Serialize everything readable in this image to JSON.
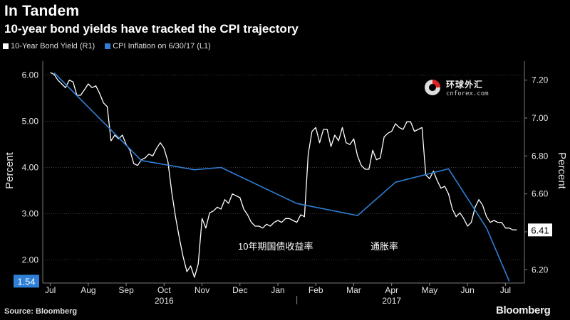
{
  "header": {
    "title": "In Tandem",
    "subtitle": "10-year bond yields have tracked the CPI trajectory"
  },
  "legend": {
    "items": [
      {
        "label": "10-Year Bond Yield (R1)",
        "color": "#ffffff"
      },
      {
        "label": "CPI Inflation on 6/30/17 (L1)",
        "color": "#2f7fd6"
      }
    ]
  },
  "footer": {
    "source": "Source: Bloomberg",
    "brand": "Bloomberg"
  },
  "watermark": {
    "name": "环球外汇",
    "site": "cnforex.com"
  },
  "annotations": {
    "bond_label": "10年期国债收益率",
    "cpi_label": "通胀率"
  },
  "chart_data": {
    "type": "line",
    "title": "In Tandem",
    "subtitle": "10-year bond yields have tracked the CPI trajectory",
    "x_ticks": [
      "Jul",
      "Aug",
      "Sep",
      "Oct",
      "Nov",
      "Dec",
      "Jan",
      "Feb",
      "Mar",
      "Apr",
      "May",
      "Jun",
      "Jul"
    ],
    "x_years": [
      "2016",
      "2017"
    ],
    "left_axis": {
      "label": "Percent",
      "range": [
        1.5,
        6.3
      ],
      "ticks": [
        "6.00",
        "5.00",
        "4.00",
        "3.00",
        "2.00"
      ]
    },
    "right_axis": {
      "label": "Percent",
      "range": [
        6.13,
        7.3
      ],
      "ticks": [
        "7.20",
        "7.00",
        "6.80",
        "6.60",
        "6.40",
        "6.20"
      ]
    },
    "grid": true,
    "series": [
      {
        "name": "10-Year Bond Yield (R1)",
        "axis": "right",
        "color": "#ffffff",
        "last_value_label": "6.41",
        "x": [
          0.0,
          0.1,
          0.2,
          0.3,
          0.4,
          0.5,
          0.6,
          0.7,
          0.8,
          0.9,
          1.0,
          1.1,
          1.2,
          1.3,
          1.4,
          1.5,
          1.6,
          1.7,
          1.8,
          1.9,
          2.0,
          2.1,
          2.2,
          2.3,
          2.4,
          2.5,
          2.6,
          2.7,
          2.8,
          2.9,
          3.0,
          3.1,
          3.2,
          3.3,
          3.4,
          3.5,
          3.6,
          3.7,
          3.8,
          3.9,
          4.0,
          4.1,
          4.2,
          4.3,
          4.4,
          4.5,
          4.6,
          4.7,
          4.8,
          4.9,
          5.0,
          5.1,
          5.2,
          5.3,
          5.4,
          5.5,
          5.6,
          5.7,
          5.8,
          5.9,
          6.0,
          6.1,
          6.2,
          6.3,
          6.4,
          6.5,
          6.6,
          6.7,
          6.8,
          6.9,
          7.0,
          7.1,
          7.2,
          7.3,
          7.4,
          7.5,
          7.6,
          7.7,
          7.8,
          7.9,
          8.0,
          8.1,
          8.2,
          8.3,
          8.4,
          8.5,
          8.6,
          8.7,
          8.8,
          8.9,
          9.0,
          9.1,
          9.2,
          9.3,
          9.4,
          9.5,
          9.6,
          9.7,
          9.8,
          9.9,
          10.0,
          10.1,
          10.2,
          10.3,
          10.4,
          10.5,
          10.6,
          10.7,
          10.8,
          10.9,
          11.0,
          11.1,
          11.2,
          11.3,
          11.4,
          11.5,
          11.6,
          11.7,
          11.8,
          11.9,
          12.0,
          12.1,
          12.2,
          12.3
        ],
        "values": [
          7.24,
          7.23,
          7.2,
          7.18,
          7.16,
          7.2,
          7.19,
          7.12,
          7.12,
          7.15,
          7.18,
          7.16,
          7.17,
          7.13,
          7.08,
          7.06,
          6.88,
          6.91,
          6.89,
          6.91,
          6.86,
          6.83,
          6.76,
          6.75,
          6.78,
          6.79,
          6.81,
          6.8,
          6.84,
          6.87,
          6.84,
          6.77,
          6.61,
          6.48,
          6.37,
          6.27,
          6.19,
          6.22,
          6.16,
          6.23,
          6.47,
          6.42,
          6.5,
          6.51,
          6.53,
          6.52,
          6.57,
          6.55,
          6.6,
          6.59,
          6.58,
          6.52,
          6.49,
          6.45,
          6.43,
          6.43,
          6.42,
          6.44,
          6.43,
          6.45,
          6.46,
          6.45,
          6.47,
          6.47,
          6.46,
          6.45,
          6.49,
          6.48,
          6.81,
          6.93,
          6.95,
          6.87,
          6.94,
          6.94,
          6.85,
          6.91,
          6.88,
          6.95,
          6.87,
          6.86,
          6.89,
          6.8,
          6.75,
          6.73,
          6.73,
          6.83,
          6.78,
          6.79,
          6.9,
          6.92,
          6.93,
          6.97,
          6.95,
          6.94,
          6.98,
          6.98,
          6.93,
          6.94,
          6.95,
          6.7,
          6.68,
          6.72,
          6.67,
          6.63,
          6.64,
          6.6,
          6.52,
          6.48,
          6.5,
          6.47,
          6.43,
          6.45,
          6.53,
          6.57,
          6.54,
          6.48,
          6.45,
          6.46,
          6.45,
          6.45,
          6.42,
          6.42,
          6.41,
          6.41
        ]
      },
      {
        "name": "CPI Inflation on 6/30/17 (L1)",
        "axis": "left",
        "color": "#2f7fd6",
        "last_value_label": "1.54",
        "x": [
          0.1,
          2.4,
          3.8,
          4.5,
          6.5,
          8.1,
          9.1,
          10.5,
          11.5,
          12.1
        ],
        "values": [
          6.05,
          4.15,
          3.95,
          4.0,
          3.22,
          2.96,
          3.68,
          3.97,
          2.69,
          1.54
        ]
      }
    ]
  }
}
